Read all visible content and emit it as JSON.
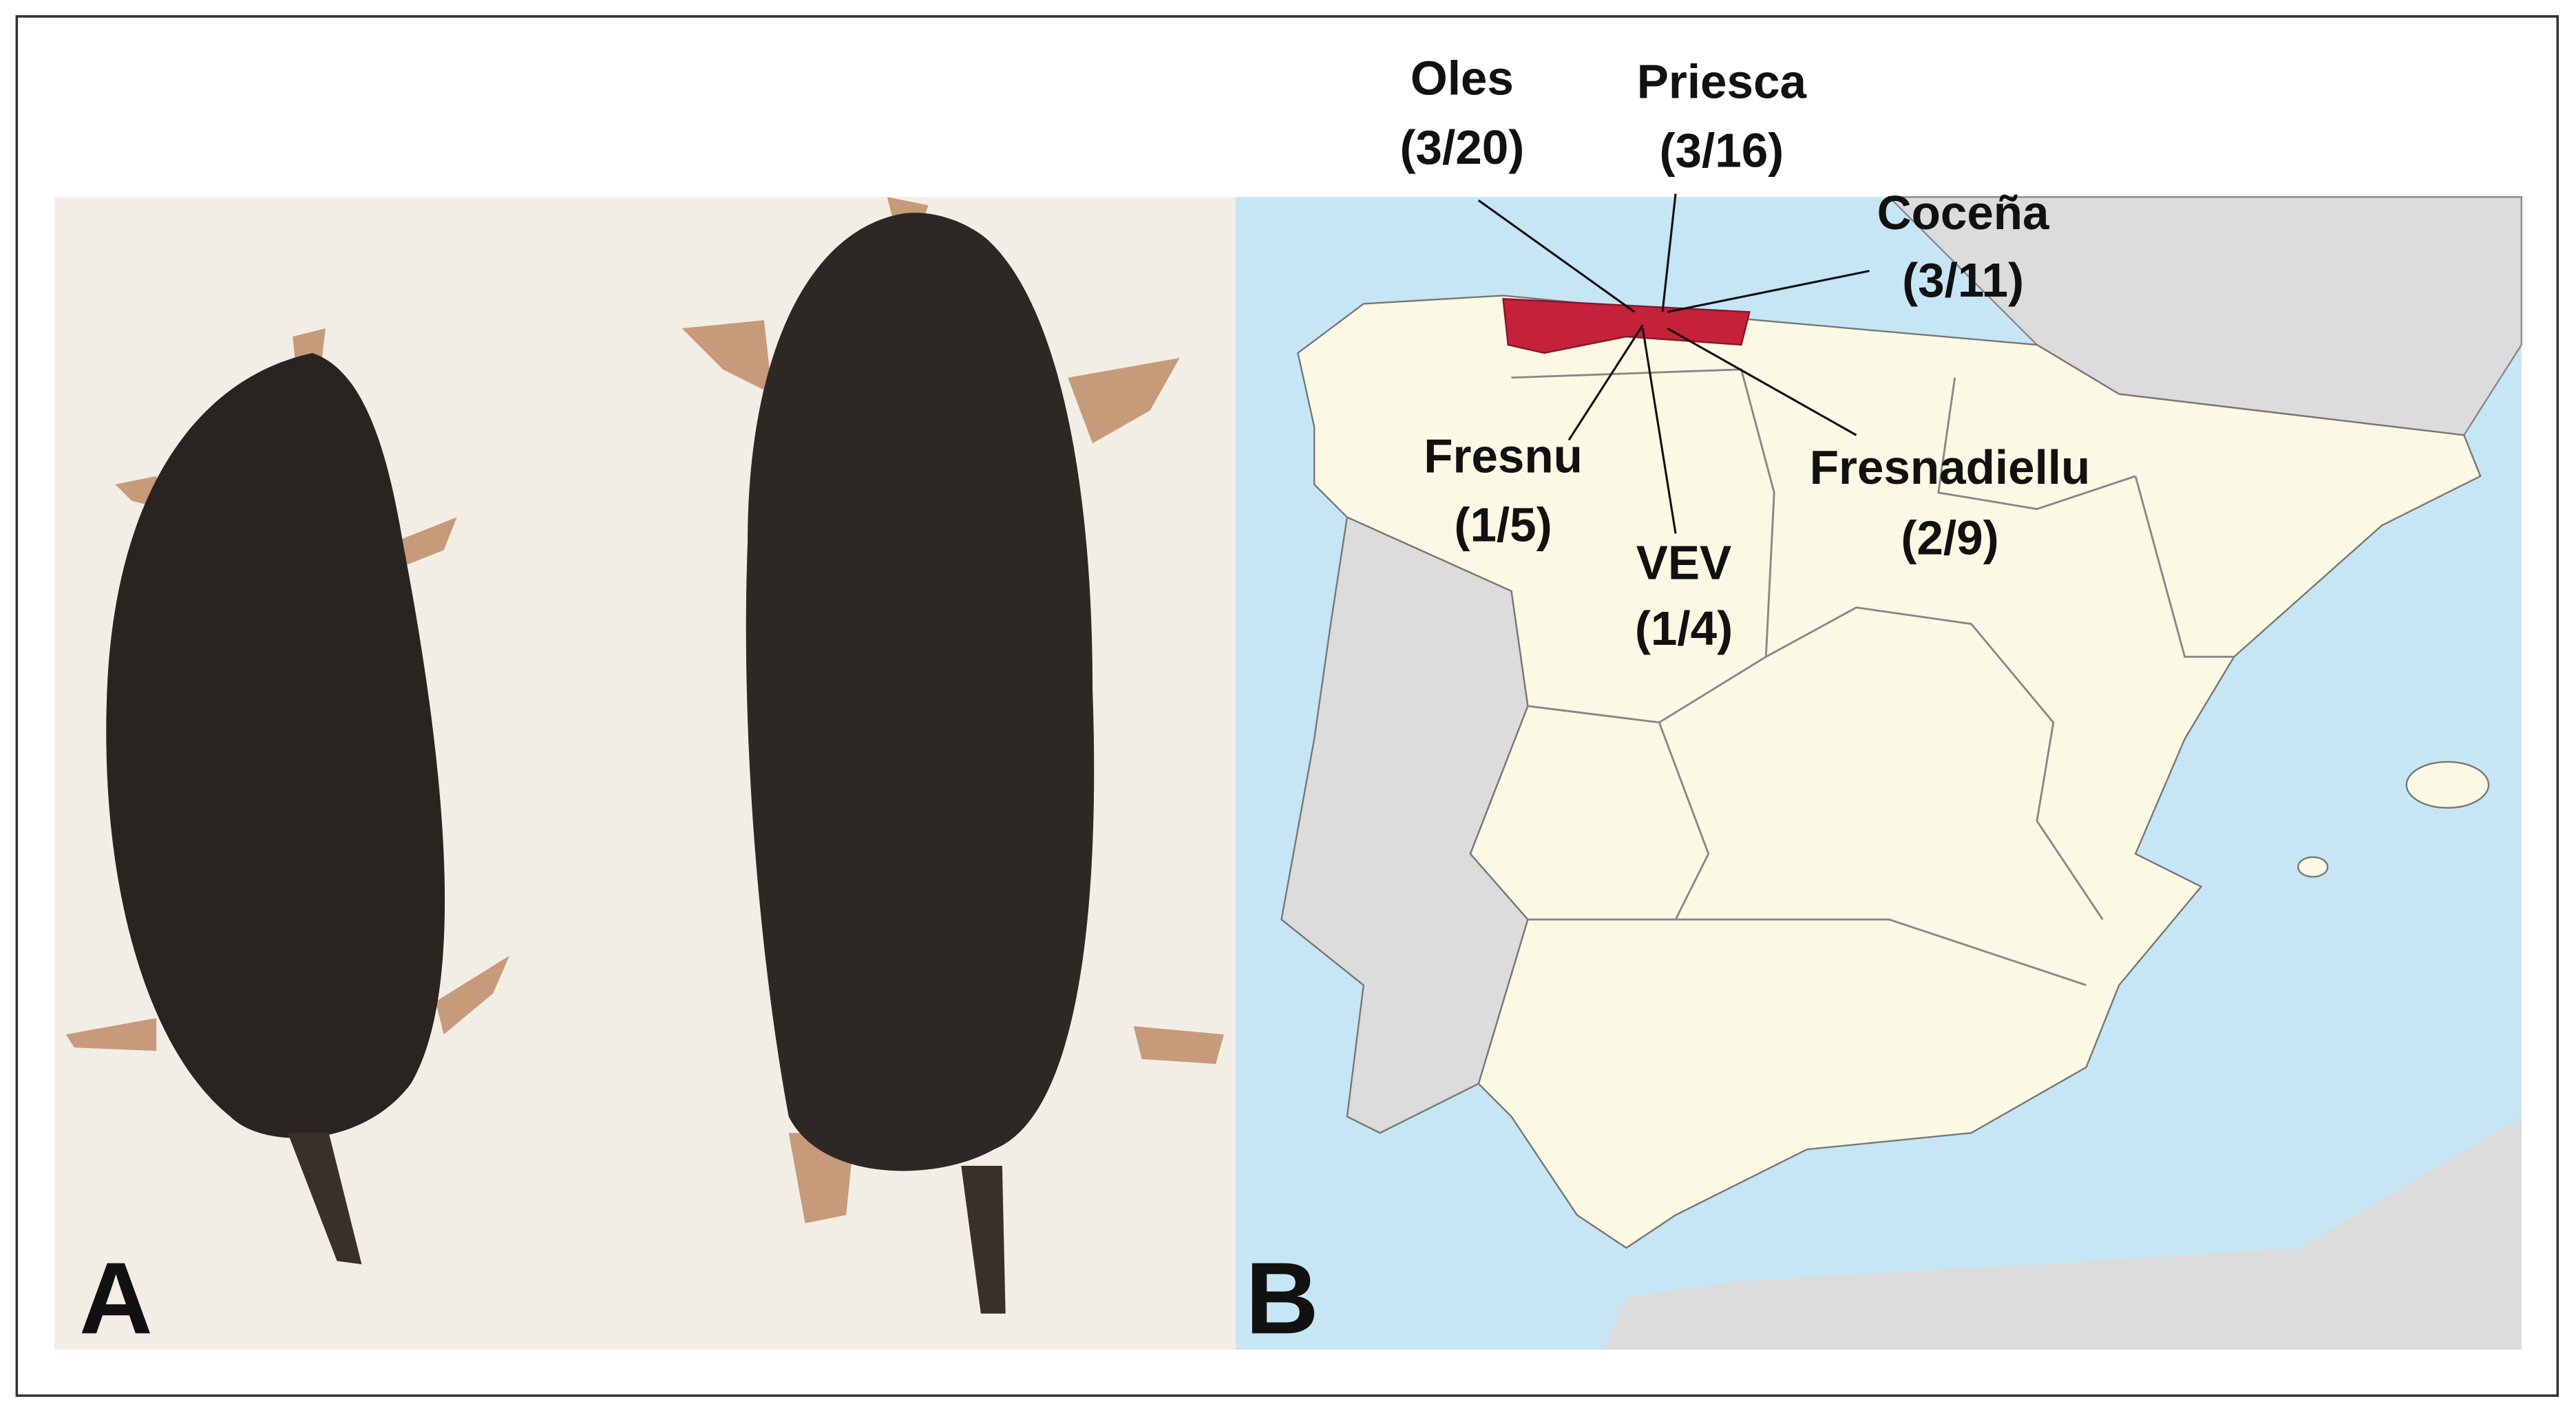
{
  "panels": [
    {
      "label": "A"
    },
    {
      "label": "B",
      "sites": [
        {
          "name": "Oles",
          "count": "(3/20)"
        },
        {
          "name": "Priesca",
          "count": "(3/16)"
        },
        {
          "name": "Coceña",
          "count": "(3/11)"
        },
        {
          "name": "Fresnu",
          "count": "(1/5)"
        },
        {
          "name": "VEV",
          "count": "(1/4)"
        },
        {
          "name": "Fresnadiellu",
          "count": "(2/9)"
        }
      ]
    }
  ]
}
